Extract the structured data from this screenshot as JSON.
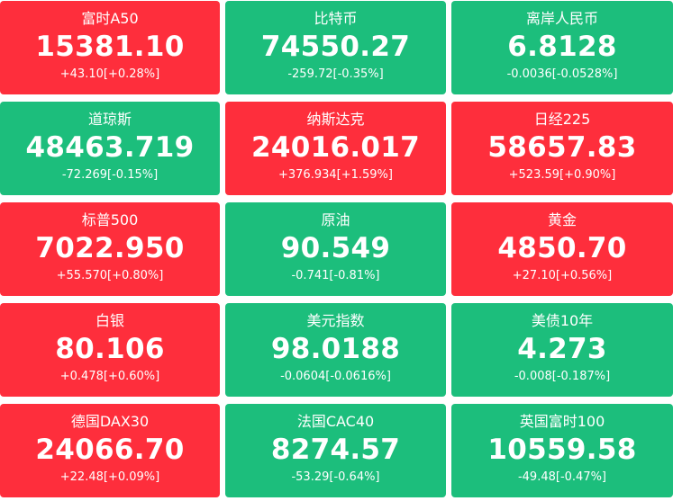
{
  "colors": {
    "up": "#fe2e3c",
    "down": "#1cbe7c",
    "text": "#ffffff"
  },
  "tiles": [
    {
      "name": "富时A50",
      "price": "15381.10",
      "change": "+43.10[+0.28%]",
      "trend": "up"
    },
    {
      "name": "比特币",
      "price": "74550.27",
      "change": "-259.72[-0.35%]",
      "trend": "down"
    },
    {
      "name": "离岸人民币",
      "price": "6.8128",
      "change": "-0.0036[-0.0528%]",
      "trend": "down"
    },
    {
      "name": "道琼斯",
      "price": "48463.719",
      "change": "-72.269[-0.15%]",
      "trend": "down"
    },
    {
      "name": "纳斯达克",
      "price": "24016.017",
      "change": "+376.934[+1.59%]",
      "trend": "up"
    },
    {
      "name": "日经225",
      "price": "58657.83",
      "change": "+523.59[+0.90%]",
      "trend": "up"
    },
    {
      "name": "标普500",
      "price": "7022.950",
      "change": "+55.570[+0.80%]",
      "trend": "up"
    },
    {
      "name": "原油",
      "price": "90.549",
      "change": "-0.741[-0.81%]",
      "trend": "down"
    },
    {
      "name": "黄金",
      "price": "4850.70",
      "change": "+27.10[+0.56%]",
      "trend": "up"
    },
    {
      "name": "白银",
      "price": "80.106",
      "change": "+0.478[+0.60%]",
      "trend": "up"
    },
    {
      "name": "美元指数",
      "price": "98.0188",
      "change": "-0.0604[-0.0616%]",
      "trend": "down"
    },
    {
      "name": "美债10年",
      "price": "4.273",
      "change": "-0.008[-0.187%]",
      "trend": "down"
    },
    {
      "name": "德国DAX30",
      "price": "24066.70",
      "change": "+22.48[+0.09%]",
      "trend": "up"
    },
    {
      "name": "法国CAC40",
      "price": "8274.57",
      "change": "-53.29[-0.64%]",
      "trend": "down"
    },
    {
      "name": "英国富时100",
      "price": "10559.58",
      "change": "-49.48[-0.47%]",
      "trend": "down"
    }
  ]
}
